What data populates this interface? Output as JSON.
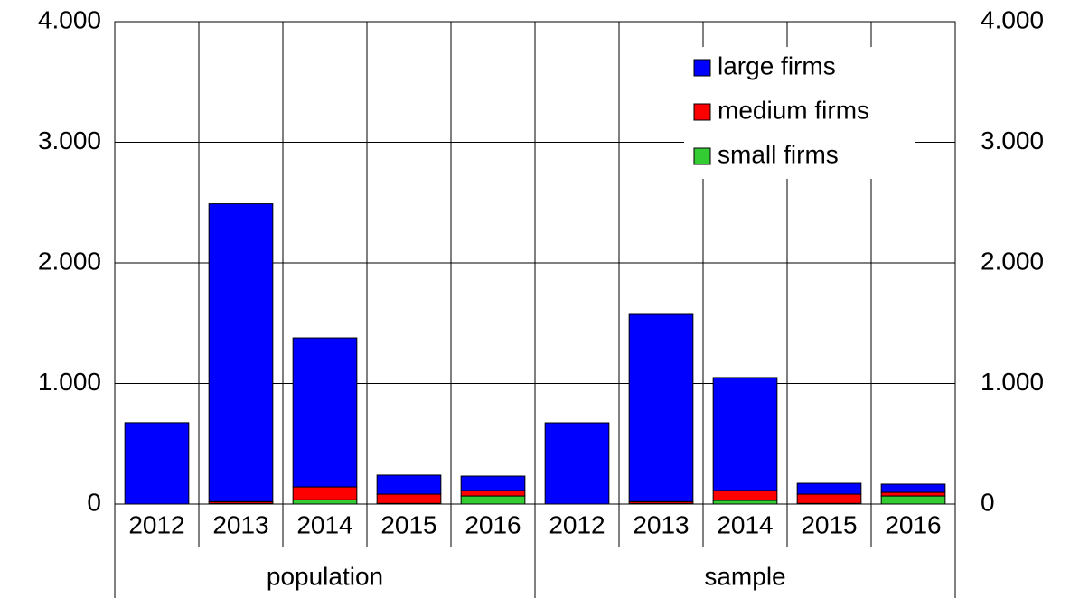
{
  "chart_data": {
    "type": "stacked-bar",
    "groups": [
      {
        "name": "population",
        "categories": [
          "2012",
          "2013",
          "2014",
          "2015",
          "2016"
        ]
      },
      {
        "name": "sample",
        "categories": [
          "2012",
          "2013",
          "2014",
          "2015",
          "2016"
        ]
      }
    ],
    "series": [
      {
        "name": "large firms",
        "color": "#0000ff",
        "values": [
          675,
          2470,
          1236,
          158,
          120,
          674,
          1553,
          937,
          90,
          68
        ]
      },
      {
        "name": "medium firms",
        "color": "#ff0000",
        "values": [
          0,
          15,
          107,
          77,
          45,
          0,
          15,
          82,
          77,
          30
        ]
      },
      {
        "name": "small firms",
        "color": "#33cc33",
        "values": [
          0,
          5,
          35,
          5,
          67,
          0,
          5,
          30,
          5,
          67
        ]
      }
    ],
    "ylim": [
      0,
      4000
    ],
    "yticks": [
      0,
      {
        "value": 1000,
        "label": "1.000"
      },
      {
        "value": 2000,
        "label": "2.000"
      },
      {
        "value": 3000,
        "label": "3.000"
      },
      {
        "value": 4000,
        "label": "4.000"
      }
    ],
    "y2lim": [
      0,
      4000
    ],
    "y2ticks": [
      0,
      {
        "value": 1000,
        "label": "1.000"
      },
      {
        "value": 2000,
        "label": "2.000"
      },
      {
        "value": 3000,
        "label": "3.000"
      },
      {
        "value": 4000,
        "label": "4.000"
      }
    ],
    "grid": true,
    "legend": "top-right"
  }
}
